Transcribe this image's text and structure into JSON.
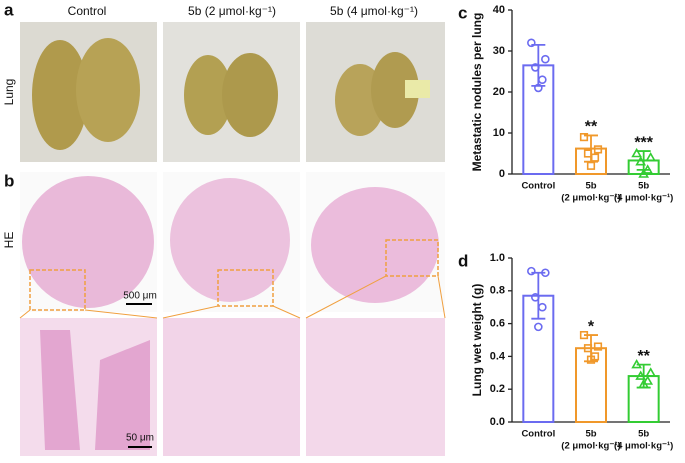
{
  "panel_labels": {
    "a": "a",
    "b": "b"
  },
  "header": {
    "columns": [
      "Control",
      "5b (2 μmol·kg⁻¹)",
      "5b (4 μmol·kg⁻¹)"
    ]
  },
  "row_labels": {
    "lung": "Lung",
    "he": "HE"
  },
  "scale_bars": {
    "overview": "500 μm",
    "zoom": "50 μm"
  },
  "chart_data": [
    {
      "type": "bar",
      "panel_label": "c",
      "y_label": "Metastatic nodules per lung",
      "categories": [
        [
          "Control"
        ],
        [
          "5b",
          "(2 μmol·kg⁻¹)"
        ],
        [
          "5b",
          "(4 μmol·kg⁻¹)"
        ]
      ],
      "values": [
        26.5,
        6.2,
        3.3
      ],
      "errors": [
        5,
        3.2,
        2.3
      ],
      "points": [
        [
          32,
          28,
          26,
          23,
          21
        ],
        [
          9,
          6,
          5,
          4,
          2
        ],
        [
          5,
          4,
          3,
          1,
          0
        ]
      ],
      "annotations": [
        null,
        "**",
        "***"
      ],
      "colors": [
        "#6b6bf0",
        "#f0982a",
        "#33cc33"
      ],
      "markers": [
        "circle",
        "square",
        "triangle"
      ],
      "ylim": [
        0,
        40
      ],
      "yticks": [
        0,
        10,
        20,
        30,
        40
      ]
    },
    {
      "type": "bar",
      "panel_label": "d",
      "y_label": "Lung wet weight (g)",
      "categories": [
        [
          "Control"
        ],
        [
          "5b",
          "(2 μmol·kg⁻¹)"
        ],
        [
          "5b",
          "(4 μmol·kg⁻¹)"
        ]
      ],
      "values": [
        0.77,
        0.45,
        0.28
      ],
      "errors": [
        0.14,
        0.08,
        0.07
      ],
      "points": [
        [
          0.92,
          0.91,
          0.76,
          0.7,
          0.58
        ],
        [
          0.53,
          0.46,
          0.45,
          0.4,
          0.38
        ],
        [
          0.35,
          0.3,
          0.28,
          0.25,
          0.23
        ]
      ],
      "annotations": [
        null,
        "*",
        "**"
      ],
      "colors": [
        "#6b6bf0",
        "#f0982a",
        "#33cc33"
      ],
      "markers": [
        "circle",
        "square",
        "triangle"
      ],
      "ylim": [
        0,
        1
      ],
      "yticks": [
        {
          "value": 0,
          "label": "0.0"
        },
        {
          "value": 0.2,
          "label": "0.2"
        },
        {
          "value": 0.4,
          "label": "0.4"
        },
        {
          "value": 0.6,
          "label": "0.6"
        },
        {
          "value": 0.8,
          "label": "0.8"
        },
        {
          "value": 1,
          "label": "1.0"
        }
      ]
    }
  ]
}
